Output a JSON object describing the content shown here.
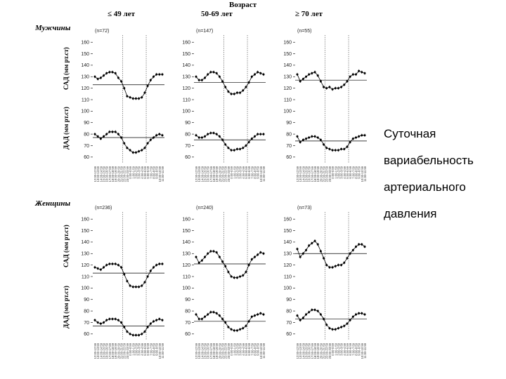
{
  "header": {
    "title": "Возраст"
  },
  "groups": {
    "men": "Мужчины",
    "women": "Женщины"
  },
  "axis_labels": {
    "sbp": "САД (мм рт.ст)",
    "dbp": "ДАД (мм рт.ст)"
  },
  "caption": [
    "Суточная",
    "вариабельность",
    "артериального",
    "давления"
  ],
  "chart_data": {
    "type": "line",
    "title": "Возраст",
    "ylabel_top": "САД (мм рт.ст)",
    "ylabel_bottom": "ДАД (мм рт.ст)",
    "y_ticks": [
      60,
      70,
      80,
      90,
      100,
      110,
      120,
      130,
      140,
      150,
      160
    ],
    "ylim": [
      55,
      165
    ],
    "columns": [
      "≤ 49 лет",
      "50-69 лет",
      "≥ 70 лет"
    ],
    "x_categories": [
      "12:00-12:59",
      "13:00-13:59",
      "14:00-14:59",
      "15:00-15:59",
      "16:00-16:59",
      "17:00-17:59",
      "18:00-18:59",
      "19:00-19:59",
      "20:00-20:59",
      "21:00-21:59",
      "22:00-22:59",
      "23:00-23:59",
      "0:00-0:59",
      "1:00-1:59",
      "2:00-2:59",
      "3:00-3:59",
      "4:00-4:59",
      "5:00-5:59",
      "6:00-6:59",
      "7:00-7:59",
      "8:00-8:59",
      "9:00-9:59",
      "10:00-10:59",
      "11:00-11:59"
    ],
    "panels": [
      {
        "group": "Мужчины",
        "age": "≤ 49 лет",
        "n": "(n=72)",
        "sbp_mean_line": 123,
        "dbp_mean_line": 77,
        "sbp": [
          130,
          128,
          129,
          131,
          133,
          134,
          134,
          133,
          129,
          126,
          120,
          113,
          112,
          111,
          111,
          111,
          112,
          116,
          122,
          127,
          130,
          132,
          132,
          132
        ],
        "dbp": [
          80,
          78,
          76,
          78,
          80,
          82,
          82,
          82,
          80,
          77,
          72,
          68,
          66,
          64,
          64,
          65,
          66,
          68,
          72,
          75,
          77,
          79,
          80,
          79
        ]
      },
      {
        "group": "Мужчины",
        "age": "50-69 лет",
        "n": "(n=147)",
        "sbp_mean_line": 125,
        "dbp_mean_line": 75,
        "sbp": [
          130,
          127,
          127,
          129,
          132,
          134,
          134,
          133,
          130,
          126,
          121,
          117,
          115,
          115,
          116,
          116,
          118,
          121,
          125,
          130,
          132,
          134,
          133,
          132
        ],
        "dbp": [
          79,
          77,
          77,
          78,
          80,
          81,
          81,
          80,
          78,
          75,
          71,
          68,
          66,
          66,
          67,
          67,
          68,
          70,
          73,
          76,
          78,
          80,
          80,
          80
        ]
      },
      {
        "group": "Мужчины",
        "age": "≥ 70 лет",
        "n": "(n=55)",
        "sbp_mean_line": 127,
        "dbp_mean_line": 74,
        "sbp": [
          132,
          126,
          128,
          130,
          132,
          133,
          134,
          131,
          126,
          121,
          120,
          121,
          119,
          120,
          120,
          121,
          123,
          126,
          130,
          132,
          132,
          135,
          134,
          133
        ],
        "dbp": [
          78,
          73,
          75,
          76,
          77,
          78,
          78,
          77,
          75,
          71,
          68,
          67,
          66,
          66,
          66,
          67,
          67,
          69,
          73,
          76,
          77,
          78,
          79,
          79
        ]
      },
      {
        "group": "Женщины",
        "age": "≤ 49 лет",
        "n": "(n=236)",
        "sbp_mean_line": 113,
        "dbp_mean_line": 67,
        "sbp": [
          118,
          117,
          116,
          118,
          120,
          121,
          121,
          121,
          120,
          118,
          112,
          106,
          102,
          101,
          101,
          101,
          102,
          105,
          110,
          115,
          118,
          120,
          121,
          121
        ],
        "dbp": [
          72,
          70,
          69,
          70,
          72,
          73,
          73,
          73,
          72,
          70,
          66,
          62,
          60,
          59,
          59,
          59,
          60,
          62,
          66,
          69,
          71,
          72,
          73,
          72
        ]
      },
      {
        "group": "Женщины",
        "age": "50-69 лет",
        "n": "(n=240)",
        "sbp_mean_line": 121,
        "dbp_mean_line": 71,
        "sbp": [
          127,
          122,
          124,
          127,
          130,
          132,
          132,
          131,
          127,
          123,
          119,
          114,
          110,
          109,
          109,
          110,
          111,
          114,
          120,
          125,
          127,
          129,
          131,
          130
        ],
        "dbp": [
          77,
          73,
          73,
          75,
          77,
          79,
          79,
          78,
          76,
          73,
          70,
          66,
          64,
          63,
          63,
          64,
          65,
          67,
          71,
          75,
          76,
          77,
          78,
          77
        ]
      },
      {
        "group": "Женщины",
        "age": "≥ 70 лет",
        "n": "(n=73)",
        "sbp_mean_line": 130,
        "dbp_mean_line": 73,
        "sbp": [
          134,
          127,
          130,
          133,
          137,
          139,
          141,
          138,
          132,
          126,
          120,
          118,
          118,
          119,
          120,
          120,
          122,
          126,
          130,
          133,
          136,
          138,
          138,
          136
        ],
        "dbp": [
          76,
          72,
          74,
          77,
          79,
          81,
          81,
          80,
          77,
          73,
          68,
          65,
          64,
          64,
          65,
          66,
          67,
          69,
          72,
          75,
          77,
          78,
          78,
          77
        ]
      }
    ]
  }
}
